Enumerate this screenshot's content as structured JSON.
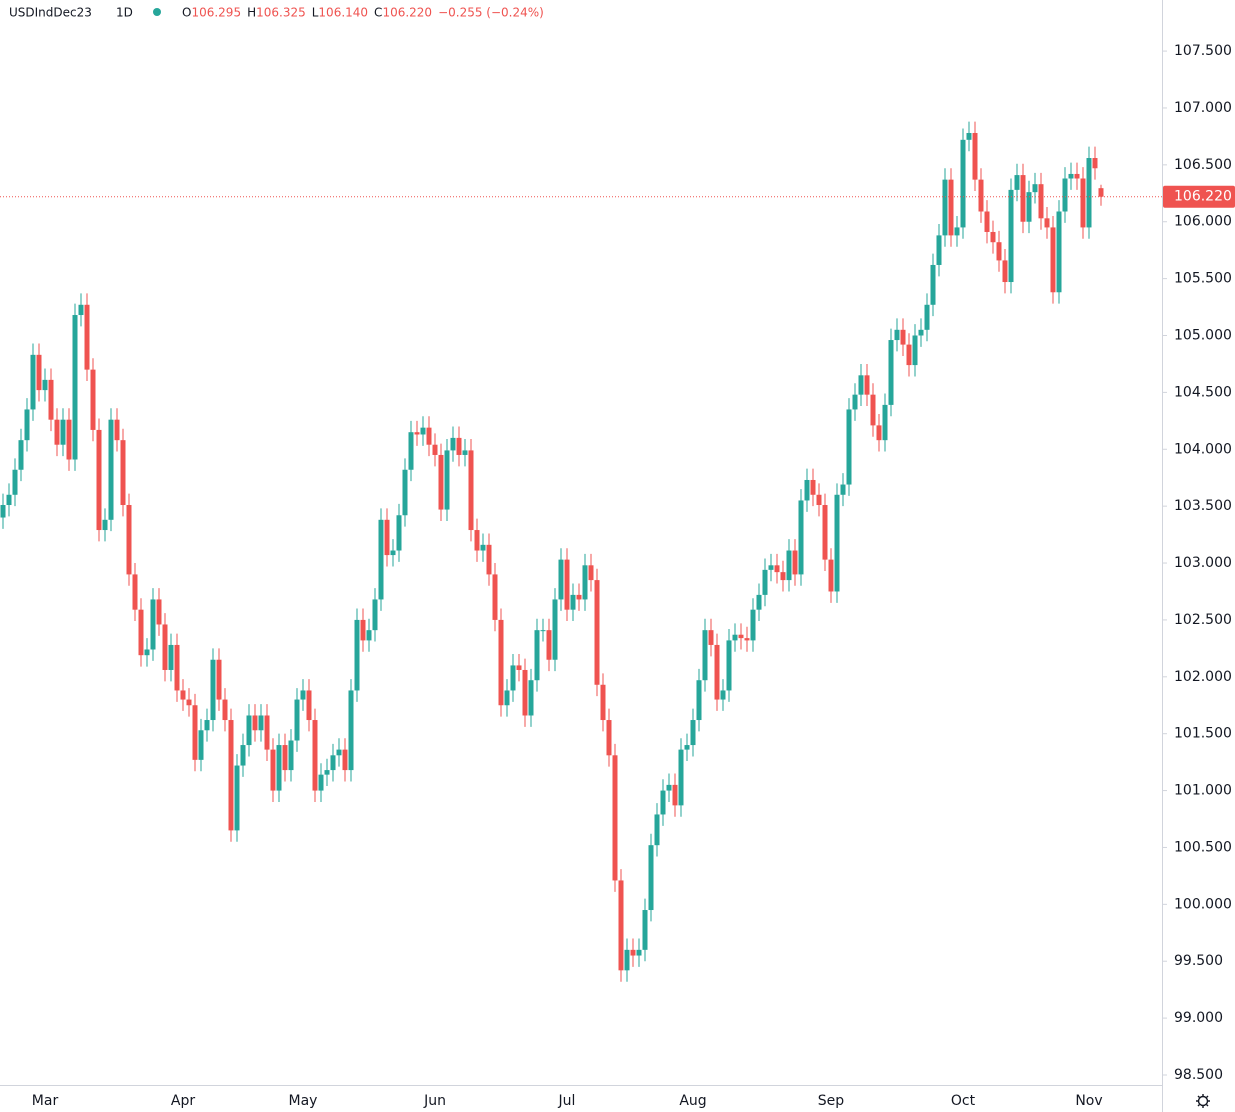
{
  "chart_data": {
    "type": "candlestick",
    "symbol": "USDIndDec23",
    "interval": "1D",
    "header": [
      {
        "key": "O",
        "value": "106.295"
      },
      {
        "key": "H",
        "value": "106.325"
      },
      {
        "key": "L",
        "value": "106.140"
      },
      {
        "key": "C",
        "value": "106.220"
      }
    ],
    "change": "−0.255 (−0.24%)",
    "last_price": 106.22,
    "last_price_label": "106.220",
    "up_color": "#26a69a",
    "down_color": "#ef5350",
    "ylim": [
      98.412,
      107.949
    ],
    "yticks": [
      {
        "value": 98.5,
        "label": "98.500"
      },
      {
        "value": 99,
        "label": "99.000"
      },
      {
        "value": 99.5,
        "label": "99.500"
      },
      {
        "value": 100,
        "label": "100.000"
      },
      {
        "value": 100.5,
        "label": "100.500"
      },
      {
        "value": 101,
        "label": "101.000"
      },
      {
        "value": 101.5,
        "label": "101.500"
      },
      {
        "value": 102,
        "label": "102.000"
      },
      {
        "value": 102.5,
        "label": "102.500"
      },
      {
        "value": 103,
        "label": "103.000"
      },
      {
        "value": 103.5,
        "label": "103.500"
      },
      {
        "value": 104,
        "label": "104.000"
      },
      {
        "value": 104.5,
        "label": "104.500"
      },
      {
        "value": 105,
        "label": "105.000"
      },
      {
        "value": 105.5,
        "label": "105.500"
      },
      {
        "value": 106,
        "label": "106.000"
      },
      {
        "value": 106.5,
        "label": "106.500"
      },
      {
        "value": 107,
        "label": "107.000"
      },
      {
        "value": 107.5,
        "label": "107.500"
      }
    ],
    "categories": [
      null,
      null,
      null,
      null,
      null,
      null,
      null,
      "Mar",
      null,
      null,
      null,
      null,
      null,
      null,
      null,
      null,
      null,
      null,
      null,
      null,
      null,
      null,
      null,
      null,
      null,
      null,
      null,
      null,
      null,
      null,
      "Apr",
      null,
      null,
      null,
      null,
      null,
      null,
      null,
      null,
      null,
      null,
      null,
      null,
      null,
      null,
      null,
      null,
      null,
      null,
      null,
      "May",
      null,
      null,
      null,
      null,
      null,
      null,
      null,
      null,
      null,
      null,
      null,
      null,
      null,
      null,
      null,
      null,
      null,
      null,
      null,
      null,
      null,
      "Jun",
      null,
      null,
      null,
      null,
      null,
      null,
      null,
      null,
      null,
      null,
      null,
      null,
      null,
      null,
      null,
      null,
      null,
      null,
      null,
      null,
      null,
      "Jul",
      null,
      null,
      null,
      null,
      null,
      null,
      null,
      null,
      null,
      null,
      null,
      null,
      null,
      null,
      null,
      null,
      null,
      null,
      null,
      null,
      "Aug",
      null,
      null,
      null,
      null,
      null,
      null,
      null,
      null,
      null,
      null,
      null,
      null,
      null,
      null,
      null,
      null,
      null,
      null,
      null,
      null,
      null,
      null,
      "Sep",
      null,
      null,
      null,
      null,
      null,
      null,
      null,
      null,
      null,
      null,
      null,
      null,
      null,
      null,
      null,
      null,
      null,
      null,
      null,
      null,
      null,
      "Oct",
      null,
      null,
      null,
      null,
      null,
      null,
      null,
      null,
      null,
      null,
      null,
      null,
      null,
      null,
      null,
      null,
      null,
      null,
      null,
      null,
      "Nov",
      null,
      null
    ],
    "open": [
      103.4,
      103.51,
      103.6,
      103.82,
      104.08,
      104.35,
      104.83,
      104.52,
      104.61,
      104.26,
      104.04,
      104.26,
      103.91,
      105.18,
      105.27,
      104.7,
      104.17,
      103.29,
      103.38,
      104.26,
      104.08,
      103.51,
      102.9,
      102.59,
      102.19,
      102.24,
      102.68,
      102.46,
      102.06,
      102.28,
      101.88,
      101.8,
      101.75,
      101.27,
      101.53,
      101.62,
      102.15,
      101.8,
      101.62,
      100.65,
      101.22,
      101.4,
      101.66,
      101.53,
      101.66,
      101.36,
      101.0,
      101.4,
      101.18,
      101.44,
      101.8,
      101.88,
      101.62,
      101.0,
      101.14,
      101.18,
      101.31,
      101.36,
      101.18,
      101.88,
      102.5,
      102.32,
      102.41,
      102.68,
      103.38,
      103.07,
      103.11,
      103.42,
      103.82,
      104.15,
      104.13,
      104.19,
      104.04,
      103.95,
      103.47,
      103.99,
      104.1,
      103.95,
      103.99,
      103.29,
      103.11,
      103.16,
      102.9,
      102.5,
      101.75,
      101.88,
      102.1,
      102.06,
      101.66,
      101.97,
      102.41,
      102.41,
      102.15,
      102.68,
      103.03,
      102.59,
      102.72,
      102.68,
      102.98,
      102.85,
      101.93,
      101.62,
      101.31,
      100.21,
      99.42,
      99.6,
      99.55,
      99.6,
      99.95,
      100.52,
      100.79,
      101.0,
      101.05,
      100.87,
      101.36,
      101.4,
      101.62,
      101.97,
      102.41,
      102.28,
      101.8,
      101.88,
      102.32,
      102.37,
      102.34,
      102.32,
      102.59,
      102.72,
      102.94,
      102.98,
      102.92,
      102.85,
      103.11,
      102.9,
      103.55,
      103.73,
      103.6,
      103.51,
      103.03,
      102.75,
      103.6,
      103.69,
      104.35,
      104.48,
      104.65,
      104.48,
      104.21,
      104.08,
      104.39,
      104.96,
      105.05,
      104.92,
      104.74,
      105.0,
      105.05,
      105.27,
      105.62,
      105.88,
      106.37,
      105.88,
      105.95,
      106.72,
      106.78,
      106.37,
      106.09,
      105.91,
      105.82,
      105.66,
      105.47,
      106.28,
      106.41,
      106.0,
      106.26,
      106.33,
      106.03,
      105.95,
      105.38,
      106.09,
      106.38,
      106.42,
      106.38,
      105.95,
      106.56,
      106.295
    ],
    "high": [
      103.61,
      103.7,
      103.92,
      104.18,
      104.45,
      104.93,
      104.93,
      104.71,
      104.71,
      104.36,
      104.36,
      104.36,
      105.28,
      105.37,
      105.37,
      104.8,
      104.27,
      103.48,
      104.36,
      104.36,
      104.18,
      103.61,
      103.0,
      102.69,
      102.34,
      102.78,
      102.78,
      102.56,
      102.38,
      102.38,
      101.98,
      101.9,
      101.85,
      101.63,
      101.72,
      102.25,
      102.25,
      101.9,
      101.72,
      101.32,
      101.5,
      101.76,
      101.76,
      101.76,
      101.76,
      101.46,
      101.5,
      101.5,
      101.54,
      101.9,
      101.98,
      101.98,
      101.72,
      101.24,
      101.28,
      101.41,
      101.46,
      101.46,
      101.98,
      102.6,
      102.6,
      102.51,
      102.78,
      103.48,
      103.48,
      103.21,
      103.52,
      103.92,
      104.25,
      104.25,
      104.29,
      104.29,
      104.14,
      104.05,
      104.09,
      104.2,
      104.2,
      104.09,
      104.09,
      103.39,
      103.26,
      103.26,
      103.0,
      102.6,
      101.98,
      102.2,
      102.2,
      102.16,
      102.07,
      102.51,
      102.51,
      102.51,
      102.78,
      103.13,
      103.13,
      102.82,
      102.82,
      103.08,
      103.08,
      102.95,
      102.03,
      101.72,
      101.41,
      100.31,
      99.7,
      99.7,
      99.7,
      100.05,
      100.62,
      100.89,
      101.1,
      101.15,
      101.15,
      101.46,
      101.5,
      101.72,
      102.07,
      102.51,
      102.51,
      102.38,
      101.98,
      102.42,
      102.47,
      102.47,
      102.44,
      102.69,
      102.82,
      103.04,
      103.08,
      103.08,
      103.02,
      103.21,
      103.21,
      103.65,
      103.83,
      103.83,
      103.7,
      103.61,
      103.13,
      103.7,
      103.79,
      104.45,
      104.58,
      104.75,
      104.75,
      104.58,
      104.31,
      104.49,
      105.06,
      105.15,
      105.15,
      105.02,
      105.1,
      105.15,
      105.37,
      105.72,
      105.98,
      106.47,
      106.47,
      106.05,
      106.82,
      106.88,
      106.88,
      106.47,
      106.19,
      106.01,
      105.92,
      105.76,
      106.38,
      106.51,
      106.51,
      106.36,
      106.43,
      106.43,
      106.13,
      106.05,
      106.19,
      106.48,
      106.52,
      106.52,
      106.48,
      106.66,
      106.66,
      106.325
    ],
    "low": [
      103.3,
      103.41,
      103.5,
      103.72,
      103.98,
      104.25,
      104.42,
      104.42,
      104.16,
      103.94,
      103.94,
      103.81,
      103.81,
      105.08,
      104.6,
      104.07,
      103.19,
      103.19,
      103.28,
      103.98,
      103.41,
      102.8,
      102.49,
      102.09,
      102.09,
      102.14,
      102.36,
      101.96,
      101.96,
      101.78,
      101.7,
      101.65,
      101.17,
      101.17,
      101.43,
      101.52,
      101.7,
      101.52,
      100.55,
      100.55,
      101.12,
      101.3,
      101.43,
      101.43,
      101.26,
      100.9,
      100.9,
      101.08,
      101.08,
      101.34,
      101.7,
      101.52,
      100.9,
      100.9,
      101.04,
      101.08,
      101.21,
      101.08,
      101.08,
      101.78,
      102.22,
      102.22,
      102.31,
      102.58,
      102.97,
      102.97,
      103.01,
      103.32,
      103.72,
      104.03,
      104.03,
      103.94,
      103.85,
      103.37,
      103.37,
      103.89,
      103.85,
      103.85,
      103.19,
      103.01,
      103.01,
      102.8,
      102.4,
      101.65,
      101.65,
      101.78,
      101.96,
      101.56,
      101.56,
      101.87,
      102.31,
      102.05,
      102.05,
      102.58,
      102.49,
      102.49,
      102.58,
      102.58,
      102.75,
      101.83,
      101.52,
      101.21,
      100.11,
      99.32,
      99.32,
      99.45,
      99.45,
      99.5,
      99.85,
      100.42,
      100.69,
      100.9,
      100.77,
      100.77,
      101.26,
      101.3,
      101.52,
      101.87,
      102.18,
      101.7,
      101.7,
      101.78,
      102.22,
      102.24,
      102.22,
      102.22,
      102.49,
      102.62,
      102.84,
      102.82,
      102.75,
      102.75,
      102.8,
      102.8,
      103.45,
      103.5,
      103.41,
      102.93,
      102.65,
      102.65,
      103.5,
      103.59,
      104.25,
      104.38,
      104.38,
      104.11,
      103.98,
      103.98,
      104.29,
      104.86,
      104.82,
      104.64,
      104.64,
      104.9,
      104.95,
      105.17,
      105.52,
      105.78,
      105.78,
      105.78,
      105.85,
      106.62,
      106.27,
      105.99,
      105.81,
      105.72,
      105.56,
      105.37,
      105.37,
      106.18,
      105.9,
      105.9,
      106.16,
      105.93,
      105.85,
      105.28,
      105.28,
      105.99,
      106.28,
      106.28,
      105.85,
      105.85,
      106.37,
      106.14
    ],
    "close": [
      103.51,
      103.6,
      103.82,
      104.08,
      104.35,
      104.83,
      104.52,
      104.61,
      104.26,
      104.04,
      104.26,
      103.91,
      105.18,
      105.27,
      104.7,
      104.17,
      103.29,
      103.38,
      104.26,
      104.08,
      103.51,
      102.9,
      102.59,
      102.19,
      102.24,
      102.68,
      102.46,
      102.06,
      102.28,
      101.88,
      101.8,
      101.75,
      101.27,
      101.53,
      101.62,
      102.15,
      101.8,
      101.62,
      100.65,
      101.22,
      101.4,
      101.66,
      101.53,
      101.66,
      101.36,
      101.0,
      101.4,
      101.18,
      101.44,
      101.8,
      101.88,
      101.62,
      101.0,
      101.14,
      101.18,
      101.31,
      101.36,
      101.18,
      101.88,
      102.5,
      102.32,
      102.41,
      102.68,
      103.38,
      103.07,
      103.11,
      103.42,
      103.82,
      104.15,
      104.13,
      104.19,
      104.04,
      103.95,
      103.47,
      103.99,
      104.1,
      103.95,
      103.99,
      103.29,
      103.11,
      103.16,
      102.9,
      102.5,
      101.75,
      101.88,
      102.1,
      102.06,
      101.66,
      101.97,
      102.41,
      102.41,
      102.15,
      102.68,
      103.03,
      102.59,
      102.72,
      102.68,
      102.98,
      102.85,
      101.93,
      101.62,
      101.31,
      100.21,
      99.42,
      99.6,
      99.55,
      99.6,
      99.95,
      100.52,
      100.79,
      101.0,
      101.05,
      100.87,
      101.36,
      101.4,
      101.62,
      101.97,
      102.41,
      102.28,
      101.8,
      101.88,
      102.32,
      102.37,
      102.34,
      102.32,
      102.59,
      102.72,
      102.94,
      102.98,
      102.92,
      102.85,
      103.11,
      102.9,
      103.55,
      103.73,
      103.6,
      103.51,
      103.03,
      102.75,
      103.6,
      103.69,
      104.35,
      104.48,
      104.65,
      104.48,
      104.21,
      104.08,
      104.39,
      104.96,
      105.05,
      104.92,
      104.74,
      105.0,
      105.05,
      105.27,
      105.62,
      105.88,
      106.37,
      105.88,
      105.95,
      106.72,
      106.78,
      106.37,
      106.09,
      105.91,
      105.82,
      105.66,
      105.47,
      106.28,
      106.41,
      106.0,
      106.26,
      106.33,
      106.03,
      105.95,
      105.38,
      106.09,
      106.38,
      106.42,
      106.38,
      105.95,
      106.56,
      106.47,
      106.22
    ]
  }
}
